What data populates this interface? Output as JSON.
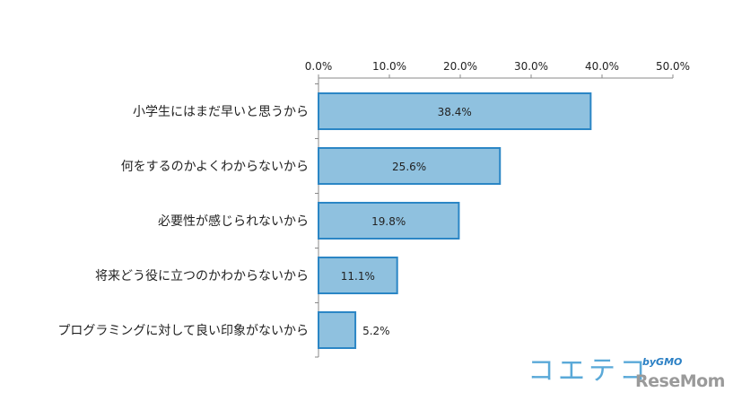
{
  "chart_data": {
    "type": "bar",
    "orientation": "horizontal",
    "categories": [
      "小学生にはまだ早いと思うから",
      "何をするのかよくわからないから",
      "必要性が感じられないから",
      "将来どう役に立つのかわからないから",
      "プログラミングに対して良い印象がないから"
    ],
    "values": [
      38.4,
      25.6,
      19.8,
      11.1,
      5.2
    ],
    "data_labels": [
      "38.4%",
      "25.6%",
      "19.8%",
      "11.1%",
      "5.2%"
    ],
    "xlim": [
      0,
      50
    ],
    "x_ticks": [
      "0.0%",
      "10.0%",
      "20.0%",
      "30.0%",
      "40.0%",
      "50.0%"
    ],
    "x_axis_position": "top",
    "grid": false,
    "bar_color": "#8fc1df",
    "bar_edge_color": "#2b86c5"
  },
  "logos": {
    "coetecu": "コエテコ",
    "by_gmo": "byGMO",
    "resemom": "ReseMom"
  }
}
